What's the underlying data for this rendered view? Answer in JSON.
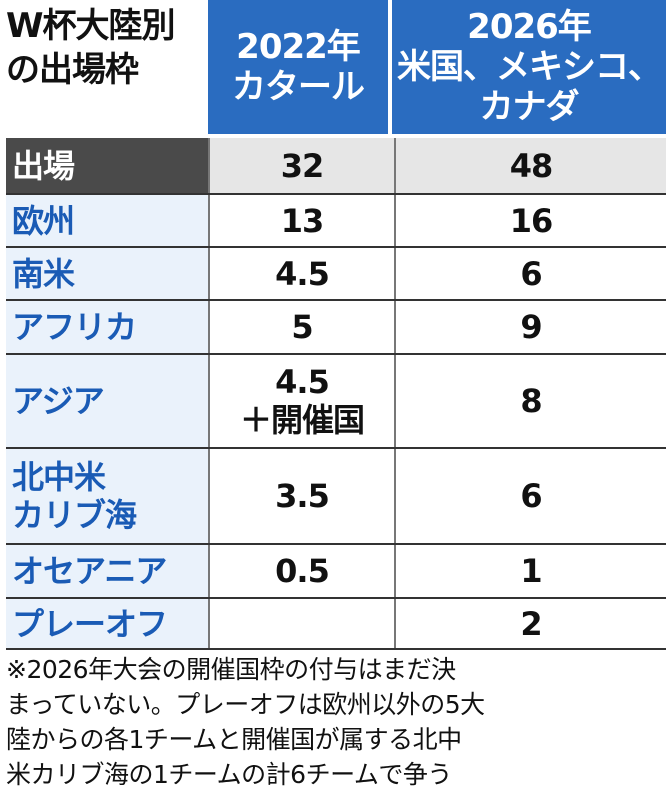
{
  "title_lines": [
    "W杯大陸別",
    "の出場枠"
  ],
  "columns": [
    {
      "lines": [
        "2022年",
        "カタール"
      ]
    },
    {
      "lines": [
        "2026年",
        "米国、メキシコ、",
        "カナダ"
      ]
    }
  ],
  "rows": [
    {
      "label": [
        "出場"
      ],
      "v2022": [
        "32"
      ],
      "v2026": "48",
      "total": true
    },
    {
      "label": [
        "欧州"
      ],
      "v2022": [
        "13"
      ],
      "v2026": "16"
    },
    {
      "label": [
        "南米"
      ],
      "v2022": [
        "4.5"
      ],
      "v2026": "6"
    },
    {
      "label": [
        "アフリカ"
      ],
      "v2022": [
        "5"
      ],
      "v2026": "9"
    },
    {
      "label": [
        "アジア"
      ],
      "v2022": [
        "4.5",
        "＋開催国"
      ],
      "v2026": "8"
    },
    {
      "label": [
        "北中米",
        "カリブ海"
      ],
      "v2022": [
        "3.5"
      ],
      "v2026": "6"
    },
    {
      "label": [
        "オセアニア"
      ],
      "v2022": [
        "0.5"
      ],
      "v2026": "1"
    },
    {
      "label": [
        "プレーオフ"
      ],
      "v2022": [
        ""
      ],
      "v2026": "2"
    }
  ],
  "note_lines": [
    "※2026年大会の開催国枠の付与はまだ決",
    "まっていない。プレーオフは欧州以外の5大",
    "陸からの各1チームと開催国が属する北中",
    "米カリブ海の1チームの計6チームで争う"
  ],
  "colors": {
    "header_blue": "#2a6cc0",
    "label_blue": "#1a5bb5",
    "total_dark": "#4a4a4a"
  },
  "chart_data": {
    "type": "table",
    "title": "W杯大陸別の出場枠",
    "columns": [
      "2022年 カタール",
      "2026年 米国、メキシコ、カナダ"
    ],
    "rows": [
      {
        "region": "出場",
        "2022": 32,
        "2026": 48
      },
      {
        "region": "欧州",
        "2022": 13,
        "2026": 16
      },
      {
        "region": "南米",
        "2022": 4.5,
        "2026": 6
      },
      {
        "region": "アフリカ",
        "2022": 5,
        "2026": 9
      },
      {
        "region": "アジア",
        "2022": "4.5＋開催国",
        "2026": 8
      },
      {
        "region": "北中米カリブ海",
        "2022": 3.5,
        "2026": 6
      },
      {
        "region": "オセアニア",
        "2022": 0.5,
        "2026": 1
      },
      {
        "region": "プレーオフ",
        "2022": null,
        "2026": 2
      }
    ]
  }
}
